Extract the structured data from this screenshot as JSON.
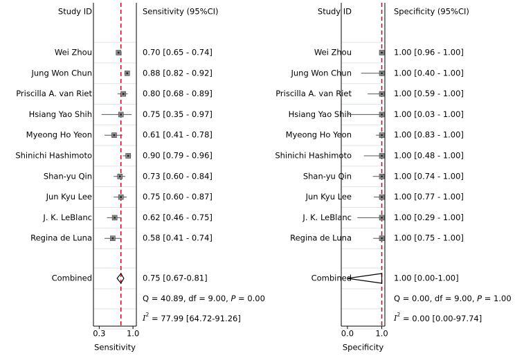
{
  "chart_data": [
    {
      "type": "forest",
      "column_headers": {
        "study": "Study ID",
        "estimate": "Sensitivity (95%CI)"
      },
      "xlabel": "Sensitivity",
      "xticks": [
        "0.3",
        "1.0"
      ],
      "xlim": [
        0.18,
        1.07
      ],
      "reference_line": 0.75,
      "studies": [
        {
          "name": "Wei Zhou",
          "est": 0.7,
          "lo": 0.65,
          "hi": 0.74,
          "label": "0.70 [0.65 - 0.74]"
        },
        {
          "name": "Jung Won Chun",
          "est": 0.88,
          "lo": 0.82,
          "hi": 0.92,
          "label": "0.88 [0.82 - 0.92]"
        },
        {
          "name": "Priscilla A. van Riet",
          "est": 0.8,
          "lo": 0.68,
          "hi": 0.89,
          "label": "0.80 [0.68 - 0.89]"
        },
        {
          "name": "Hsiang Yao Shih",
          "est": 0.75,
          "lo": 0.35,
          "hi": 0.97,
          "label": "0.75 [0.35 - 0.97]"
        },
        {
          "name": "Myeong Ho Yeon",
          "est": 0.61,
          "lo": 0.41,
          "hi": 0.78,
          "label": "0.61 [0.41 - 0.78]"
        },
        {
          "name": "Shinichi Hashimoto",
          "est": 0.9,
          "lo": 0.79,
          "hi": 0.96,
          "label": "0.90 [0.79 - 0.96]"
        },
        {
          "name": "Shan-yu Qin",
          "est": 0.73,
          "lo": 0.6,
          "hi": 0.84,
          "label": "0.73 [0.60 - 0.84]"
        },
        {
          "name": "Jun Kyu Lee",
          "est": 0.75,
          "lo": 0.6,
          "hi": 0.87,
          "label": "0.75 [0.60 - 0.87]"
        },
        {
          "name": "J. K. LeBlanc",
          "est": 0.62,
          "lo": 0.46,
          "hi": 0.75,
          "label": "0.62 [0.46 - 0.75]"
        },
        {
          "name": "Regina de Luna",
          "est": 0.58,
          "lo": 0.41,
          "hi": 0.74,
          "label": "0.58 [0.41 - 0.74]"
        }
      ],
      "combined": {
        "name": "Combined",
        "est": 0.75,
        "lo": 0.67,
        "hi": 0.81,
        "label": "0.75 [0.67-0.81]",
        "shape": "diamond"
      },
      "heterogeneity": [
        {
          "parts": [
            "Q = 40.89, df = 9.00, ",
            "P",
            " = 0.00"
          ]
        },
        {
          "parts": [
            "I",
            "2",
            " = 77.99 [64.72-91.26]"
          ]
        }
      ],
      "grid": true
    },
    {
      "type": "forest",
      "column_headers": {
        "study": "Study ID",
        "estimate": "Specificity (95%CI)"
      },
      "xlabel": "Specificity",
      "xticks": [
        "0.0",
        "1.0"
      ],
      "xlim": [
        -0.18,
        1.09
      ],
      "reference_line": 1.0,
      "studies": [
        {
          "name": "Wei Zhou",
          "est": 1.0,
          "lo": 0.96,
          "hi": 1.0,
          "label": "1.00 [0.96 - 1.00]"
        },
        {
          "name": "Jung Won Chun",
          "est": 1.0,
          "lo": 0.4,
          "hi": 1.0,
          "label": "1.00 [0.40 - 1.00]"
        },
        {
          "name": "Priscilla A. van Riet",
          "est": 1.0,
          "lo": 0.59,
          "hi": 1.0,
          "label": "1.00 [0.59 - 1.00]"
        },
        {
          "name": "Hsiang Yao Shih",
          "est": 1.0,
          "lo": 0.03,
          "hi": 1.0,
          "label": "1.00 [0.03 - 1.00]"
        },
        {
          "name": "Myeong Ho Yeon",
          "est": 1.0,
          "lo": 0.83,
          "hi": 1.0,
          "label": "1.00 [0.83 - 1.00]"
        },
        {
          "name": "Shinichi Hashimoto",
          "est": 1.0,
          "lo": 0.48,
          "hi": 1.0,
          "label": "1.00 [0.48 - 1.00]"
        },
        {
          "name": "Shan-yu Qin",
          "est": 1.0,
          "lo": 0.74,
          "hi": 1.0,
          "label": "1.00 [0.74 - 1.00]"
        },
        {
          "name": "Jun Kyu Lee",
          "est": 1.0,
          "lo": 0.77,
          "hi": 1.0,
          "label": "1.00 [0.77 - 1.00]"
        },
        {
          "name": "J. K. LeBlanc",
          "est": 1.0,
          "lo": 0.29,
          "hi": 1.0,
          "label": "1.00 [0.29 - 1.00]"
        },
        {
          "name": "Regina de Luna",
          "est": 1.0,
          "lo": 0.75,
          "hi": 1.0,
          "label": "1.00 [0.75 - 1.00]"
        }
      ],
      "combined": {
        "name": "Combined",
        "est": 1.0,
        "lo": 0.0,
        "hi": 1.0,
        "label": "1.00 [0.00-1.00]",
        "shape": "triangle"
      },
      "heterogeneity": [
        {
          "parts": [
            "Q = 0.00, df = 9.00, ",
            "P",
            " = 1.00"
          ]
        },
        {
          "parts": [
            "I",
            "2",
            " = 0.00 [0.00-97.74]"
          ]
        }
      ],
      "grid": true
    }
  ],
  "colors": {
    "reference_line": "#c8102e",
    "marker": "#8c8c8c",
    "marker_border": "#404040",
    "grid": "#dde3ea",
    "text": "#000000"
  }
}
